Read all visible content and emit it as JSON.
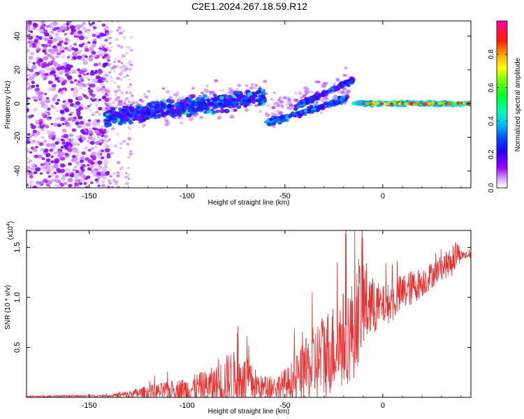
{
  "figure": {
    "title": "C2E1.2024.267.18.59.R12"
  },
  "chart_data": [
    {
      "type": "heatmap",
      "title": "C2E1.2024.267.18.59.R12",
      "xlabel": "Height of straight line (km)",
      "ylabel": "Frequency (Hz)",
      "xlim": [
        -182,
        45
      ],
      "ylim": [
        -50,
        49
      ],
      "xticks": [
        -150,
        -100,
        -50,
        0
      ],
      "yticks": [
        -40,
        -20,
        0,
        20,
        40
      ],
      "colorbar": {
        "label": "Normalized spectral amplitude",
        "range": [
          0,
          1
        ],
        "ticks": [
          0.0,
          0.2,
          0.4,
          0.6,
          0.8
        ],
        "colors": [
          "#ffffff",
          "#a000ff",
          "#4000ff",
          "#0000ff",
          "#00a0ff",
          "#00ffff",
          "#00ff40",
          "#80ff00",
          "#ffff00",
          "#ffa000",
          "#ff0000",
          "#ff00a0"
        ]
      },
      "regions": [
        {
          "name": "noise_scatter",
          "x": [
            -182,
            -130
          ],
          "y": [
            -50,
            49
          ],
          "amplitude": 0.15
        },
        {
          "name": "main_band",
          "x": [
            -142,
            -60
          ],
          "y_center": [
            -10,
            5
          ],
          "amplitude": 0.3
        },
        {
          "name": "lower_branch",
          "x": [
            -60,
            -20
          ],
          "y_center": [
            -12,
            5
          ],
          "amplitude": 0.35
        },
        {
          "name": "upper_branch",
          "x": [
            -45,
            -15
          ],
          "y_center": [
            -3,
            15
          ],
          "amplitude": 0.3
        },
        {
          "name": "steady_line",
          "x": [
            -15,
            45
          ],
          "y_center": [
            0,
            0
          ],
          "amplitude": 0.75
        }
      ]
    },
    {
      "type": "line",
      "xlabel": "Height of straight line (km)",
      "ylabel": "SNR (10 * v/v)",
      "y_multiplier": "(x10",
      "y_multiplier_exp": "4",
      "y_multiplier_close": ")",
      "xlim": [
        -182,
        45
      ],
      "ylim": [
        0,
        1.67
      ],
      "xticks": [
        -150,
        -100,
        -50,
        0
      ],
      "yticks": [
        0.5,
        1.0,
        1.5
      ],
      "color": "#e83030",
      "envelope": {
        "x": [
          -182,
          -140,
          -130,
          -120,
          -100,
          -85,
          -78,
          -70,
          -62,
          -55,
          -48,
          -42,
          -35,
          -30,
          -25,
          -20,
          -15,
          -12,
          -10,
          -5,
          0,
          5,
          10,
          20,
          30,
          35,
          38,
          40,
          45
        ],
        "mean": [
          0.01,
          0.015,
          0.03,
          0.05,
          0.08,
          0.12,
          0.18,
          0.16,
          0.1,
          0.1,
          0.14,
          0.2,
          0.33,
          0.42,
          0.5,
          0.58,
          0.68,
          0.9,
          0.95,
          0.9,
          0.92,
          0.95,
          1.05,
          1.15,
          1.3,
          1.35,
          1.45,
          1.42,
          1.42
        ],
        "amplitude": [
          0.005,
          0.01,
          0.04,
          0.07,
          0.12,
          0.2,
          0.3,
          0.25,
          0.12,
          0.12,
          0.18,
          0.3,
          0.4,
          0.45,
          0.45,
          0.5,
          0.5,
          0.55,
          0.5,
          0.3,
          0.2,
          0.2,
          0.2,
          0.15,
          0.12,
          0.15,
          0.15,
          0.05,
          0.03
        ]
      }
    }
  ]
}
